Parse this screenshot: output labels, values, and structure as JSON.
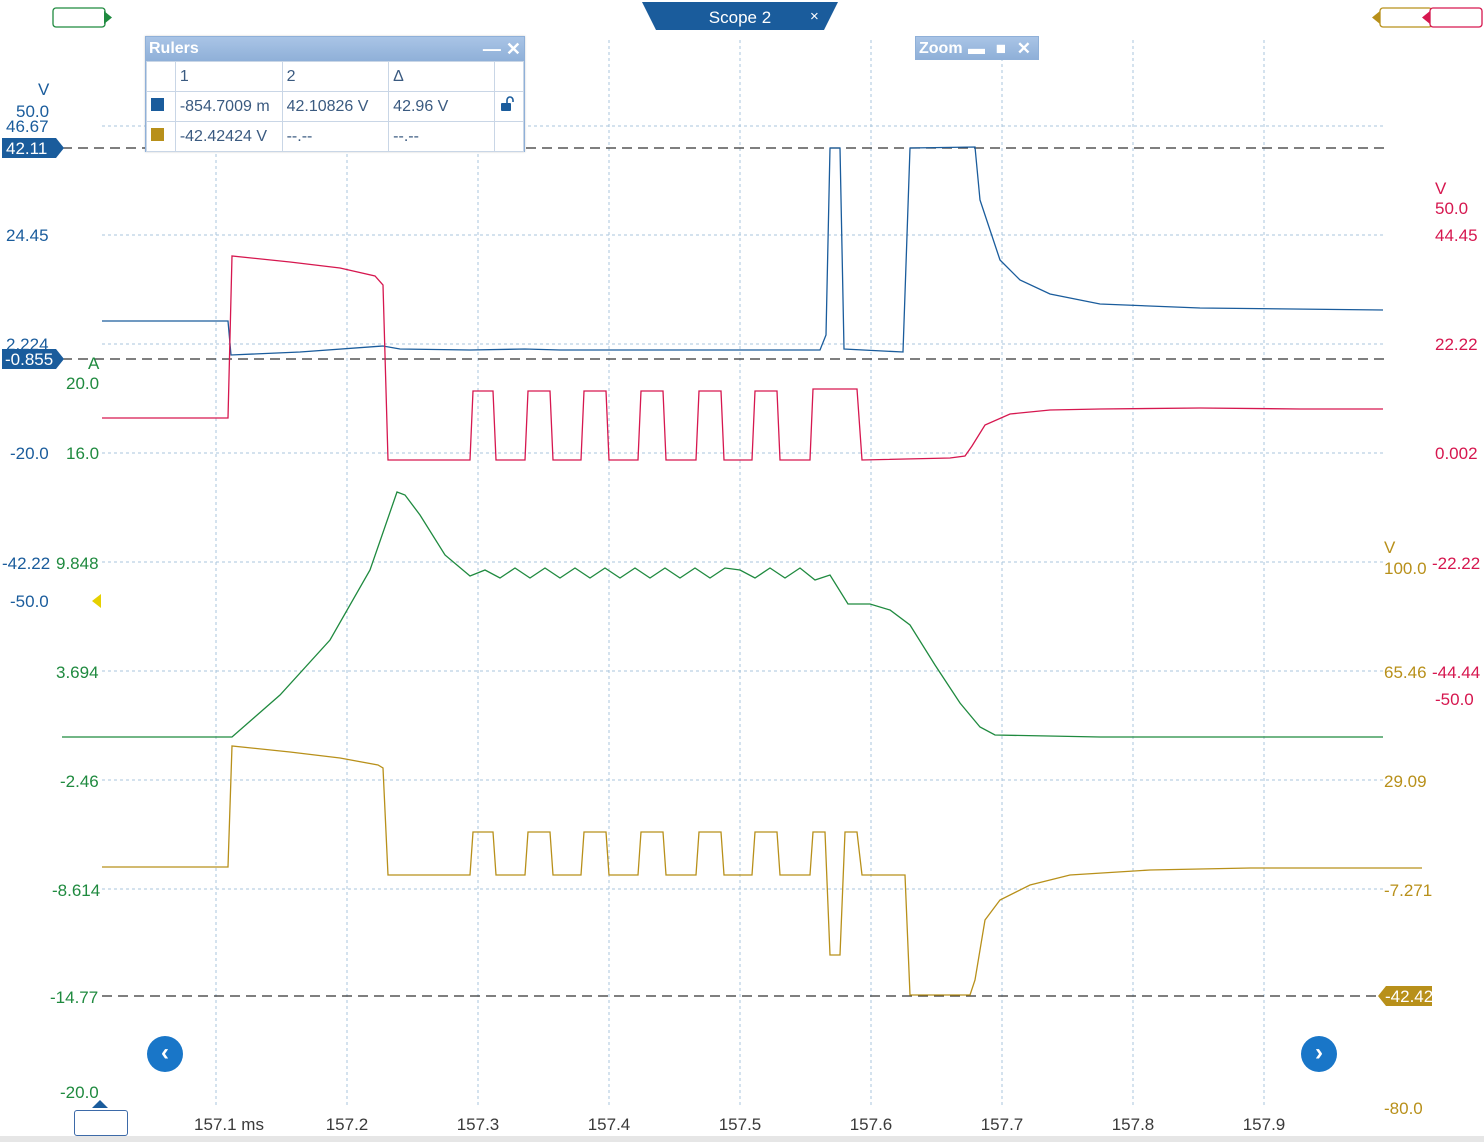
{
  "colors": {
    "blue": "#1a5c9c",
    "red": "#d6174f",
    "green": "#1f8a3f",
    "gold": "#b8901a",
    "grid": "#a9c6dd"
  },
  "title": {
    "label": "Scope 2",
    "close": "×"
  },
  "axes": {
    "x_ticks": [
      "157.1 ms",
      "157.2",
      "157.3",
      "157.4",
      "157.5",
      "157.6",
      "157.7",
      "157.8",
      "157.9"
    ],
    "blue": {
      "unit": "V",
      "ticks": [
        "50.0",
        "46.67",
        "24.45",
        "2.224",
        "-20.0",
        "-42.22",
        "-50.0"
      ]
    },
    "red": {
      "unit": "V",
      "ticks": [
        "50.0",
        "44.45",
        "22.22",
        "0.002",
        "-22.22",
        "-44.44",
        "-50.0"
      ]
    },
    "green": {
      "unit": "A",
      "ticks": [
        "20.0",
        "16.0",
        "9.848",
        "3.694",
        "-2.46",
        "-8.614",
        "-14.77",
        "-20.0"
      ]
    },
    "gold": {
      "unit": "V",
      "ticks": [
        "100.0",
        "65.46",
        "29.09",
        "-7.271",
        "-80.0"
      ]
    }
  },
  "markers": {
    "blue_ruler_1": "42.11",
    "blue_ruler_2": "-0.855",
    "gold_ruler": "-42.42"
  },
  "rulers": {
    "title": "Rulers",
    "ctrl_min": "—",
    "ctrl_close": "✕",
    "headers": [
      "1",
      "2",
      "Δ"
    ],
    "rows": [
      {
        "channel": "blue",
        "v1": "-854.7009 m",
        "v2": "42.10826 V",
        "delta": "42.96 V"
      },
      {
        "channel": "gold",
        "v1": "-42.42424 V",
        "v2": "--.--",
        "delta": "--.--"
      }
    ]
  },
  "zoom": {
    "title": "Zoom",
    "ctrls": "▬ ■ ✕"
  },
  "nav": {
    "prev": "‹",
    "next": "›"
  }
}
